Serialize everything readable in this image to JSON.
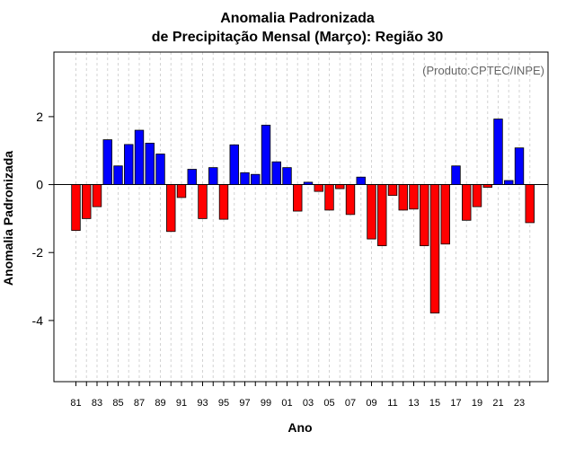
{
  "chart_data": {
    "type": "bar",
    "title": [
      "Anomalia Padronizada",
      "de Precipitação Mensal (Março): Região 30"
    ],
    "xlabel": "Ano",
    "ylabel": "Anomalia Padronizada",
    "annotation": "(Produto:CPTEC/INPE)",
    "categories": [
      "1981",
      "1982",
      "1983",
      "1984",
      "1985",
      "1986",
      "1987",
      "1988",
      "1989",
      "1990",
      "1991",
      "1992",
      "1993",
      "1994",
      "1995",
      "1996",
      "1997",
      "1998",
      "1999",
      "2000",
      "2001",
      "2002",
      "2003",
      "2004",
      "2005",
      "2006",
      "2007",
      "2008",
      "2009",
      "2010",
      "2011",
      "2012",
      "2013",
      "2014",
      "2015",
      "2016",
      "2017",
      "2018",
      "2019",
      "2020",
      "2021",
      "2022",
      "2023",
      "2024"
    ],
    "values": [
      -1.35,
      -1.0,
      -0.65,
      1.32,
      0.55,
      1.18,
      1.6,
      1.22,
      0.9,
      -1.38,
      -0.38,
      0.45,
      -1.0,
      0.5,
      -1.02,
      1.17,
      0.35,
      0.3,
      1.75,
      0.67,
      0.5,
      -0.78,
      0.07,
      -0.2,
      -0.75,
      -0.12,
      -0.88,
      0.22,
      -1.6,
      -1.8,
      -0.32,
      -0.75,
      -0.72,
      -1.8,
      -3.78,
      -1.75,
      0.55,
      -1.05,
      -0.65,
      -0.08,
      1.93,
      0.12,
      1.08,
      -1.12
    ],
    "xtick_labels": [
      "81",
      "83",
      "85",
      "87",
      "89",
      "91",
      "93",
      "95",
      "97",
      "99",
      "01",
      "03",
      "05",
      "07",
      "09",
      "11",
      "13",
      "15",
      "17",
      "19",
      "21",
      "23"
    ],
    "yticks": [
      -4,
      -2,
      0,
      2
    ],
    "ylim": [
      -5.8,
      3.9
    ],
    "colors": {
      "positive": "#0000ff",
      "negative": "#ff0000",
      "grid": "#d3d3d3",
      "annotation": "#666666"
    },
    "grid": true
  }
}
